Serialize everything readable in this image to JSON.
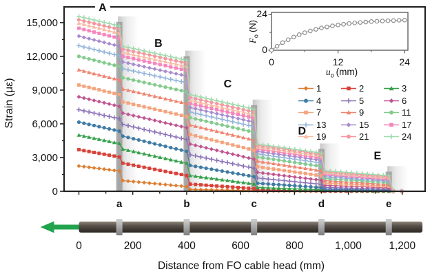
{
  "chart_data": [
    {
      "type": "line",
      "role": "main-strain-profile",
      "xlabel": "Distance from FO cable head (mm)",
      "ylabel": "Strain (με)",
      "xlim": [
        -55,
        1285
      ],
      "ylim": [
        0,
        16400
      ],
      "yticks": [
        0,
        3000,
        6000,
        9000,
        12000,
        15000
      ],
      "ytick_labels": [
        "0",
        "3,000",
        "6,000",
        "9,000",
        "12,000",
        "15,000"
      ],
      "ytick_minor_step": 1500,
      "xticks": [
        0,
        200,
        400,
        600,
        800,
        1000,
        1200
      ],
      "xtick_labels": [
        "0",
        "200",
        "400",
        "600",
        "800",
        "1,000",
        "1,200"
      ],
      "xtick_minor_step": 100,
      "grid": false,
      "region_bounds_mm": [
        [
          0,
          150
        ],
        [
          163,
          400
        ],
        [
          413,
          650
        ],
        [
          663,
          900
        ],
        [
          913,
          1150
        ]
      ],
      "regions": [
        {
          "label": "A",
          "x": 88,
          "y": 16350
        },
        {
          "label": "B",
          "x": 295,
          "y": 13150
        },
        {
          "label": "C",
          "x": 552,
          "y": 9550
        },
        {
          "label": "D",
          "x": 828,
          "y": 5350
        },
        {
          "label": "E",
          "x": 1108,
          "y": 3150
        }
      ],
      "anchors": [
        {
          "label": "a",
          "x": 150
        },
        {
          "label": "b",
          "x": 400
        },
        {
          "label": "c",
          "x": 650
        },
        {
          "label": "d",
          "x": 900
        },
        {
          "label": "e",
          "x": 1150
        }
      ],
      "anchor_band_color": "#9e9e9e",
      "series": [
        {
          "name": "1",
          "u_mm": 1,
          "color": "#DD7E30",
          "marker": "diamond",
          "values": [
            2250,
            1800,
            950,
            420,
            160,
            60,
            35,
            15,
            8,
            4
          ]
        },
        {
          "name": "2",
          "u_mm": 2,
          "color": "#D84038",
          "marker": "square",
          "values": [
            3700,
            3050,
            2500,
            1400,
            640,
            240,
            130,
            50,
            28,
            14
          ]
        },
        {
          "name": "3",
          "u_mm": 3,
          "color": "#33A048",
          "marker": "triangle",
          "values": [
            5000,
            4250,
            3750,
            2500,
            1400,
            650,
            340,
            140,
            80,
            40
          ]
        },
        {
          "name": "4",
          "u_mm": 4,
          "color": "#3F7BA5",
          "marker": "circle",
          "values": [
            6150,
            5350,
            4900,
            3550,
            2300,
            1300,
            720,
            330,
            180,
            95
          ]
        },
        {
          "name": "5",
          "u_mm": 5,
          "color": "#8A70B8",
          "marker": "plus",
          "values": [
            7250,
            6450,
            5950,
            4600,
            3250,
            2050,
            1180,
            620,
            340,
            190
          ]
        },
        {
          "name": "6",
          "u_mm": 6,
          "color": "#C05590",
          "marker": "diamond",
          "values": [
            8400,
            7550,
            6950,
            5650,
            4200,
            2850,
            1680,
            980,
            530,
            310
          ]
        },
        {
          "name": "7",
          "u_mm": 7,
          "color": "#F4A47E",
          "marker": "square",
          "values": [
            9450,
            8600,
            7950,
            6650,
            5050,
            3650,
            2180,
            1380,
            730,
            450
          ]
        },
        {
          "name": "9",
          "u_mm": 9,
          "color": "#EF8470",
          "marker": "triangle",
          "values": [
            10800,
            9900,
            9100,
            7800,
            5900,
            4550,
            2680,
            1820,
            950,
            610
          ]
        },
        {
          "name": "11",
          "u_mm": 11,
          "color": "#84CB8E",
          "marker": "circle",
          "values": [
            12000,
            11100,
            10100,
            8850,
            6550,
            5250,
            3050,
            2220,
            1140,
            770
          ]
        },
        {
          "name": "13",
          "u_mm": 13,
          "color": "#93B4DA",
          "marker": "plus",
          "values": [
            12950,
            12050,
            10900,
            9650,
            7050,
            5750,
            3320,
            2520,
            1290,
            890
          ]
        },
        {
          "name": "15",
          "u_mm": 15,
          "color": "#A78BCD",
          "marker": "diamond",
          "values": [
            13800,
            12900,
            11500,
            10250,
            7450,
            6150,
            3550,
            2750,
            1430,
            1010
          ]
        },
        {
          "name": "17",
          "u_mm": 17,
          "color": "#F585BC",
          "marker": "square",
          "values": [
            14500,
            13600,
            12000,
            10750,
            7800,
            6500,
            3760,
            2960,
            1550,
            1110
          ]
        },
        {
          "name": "19",
          "u_mm": 19,
          "color": "#F7BBA4",
          "marker": "triangle",
          "values": [
            14950,
            14050,
            12350,
            11100,
            8100,
            6800,
            3940,
            3140,
            1660,
            1210
          ]
        },
        {
          "name": "21",
          "u_mm": 21,
          "color": "#F9959D",
          "marker": "circle",
          "values": [
            15250,
            14400,
            12650,
            11400,
            8350,
            7050,
            4080,
            3280,
            1750,
            1300
          ]
        },
        {
          "name": "24",
          "u_mm": 24,
          "color": "#A0D9AD",
          "marker": "plus",
          "values": [
            15550,
            14700,
            12900,
            11650,
            8600,
            7300,
            4200,
            3400,
            1830,
            1380
          ]
        }
      ]
    },
    {
      "type": "line",
      "role": "inset-pullout-force",
      "xlabel": "u_o (mm)",
      "ylabel": "F_o (N)",
      "xlabel_parts": {
        "var": "u",
        "sub": "o",
        "unit": "(mm)"
      },
      "ylabel_parts": {
        "var": "F",
        "sub": "o",
        "unit": "(N)"
      },
      "xlim": [
        0,
        24.6
      ],
      "ylim": [
        0,
        25.5
      ],
      "xticks": [
        0,
        12,
        24
      ],
      "xtick_labels": [
        "0",
        "12",
        "24"
      ],
      "xticks_minor": [
        6,
        18
      ],
      "yticks": [
        0,
        24
      ],
      "ytick_labels": [
        "0",
        "24"
      ],
      "yticks_minor": [
        12
      ],
      "color": "#8f8f8f",
      "marker": "circle-open",
      "x": [
        0,
        1,
        2,
        3,
        4,
        5,
        6,
        7,
        8,
        9,
        10,
        11,
        12,
        13,
        14,
        15,
        16,
        17,
        18,
        19,
        20,
        21,
        22,
        23,
        24
      ],
      "y": [
        0,
        2.7,
        5.1,
        7.1,
        8.9,
        10.5,
        11.8,
        13.0,
        14.1,
        15.0,
        15.7,
        16.4,
        17.0,
        17.5,
        18.0,
        18.4,
        18.7,
        19.0,
        19.3,
        19.5,
        19.7,
        19.9,
        20.0,
        20.2,
        20.3
      ]
    }
  ],
  "legend": {
    "entries": [
      "1",
      "2",
      "3",
      "4",
      "5",
      "6",
      "7",
      "9",
      "11",
      "13",
      "15",
      "17",
      "19",
      "21",
      "24"
    ]
  },
  "cable": {
    "start_mm": 0,
    "end_mm": 1275,
    "clamps_mm": [
      150,
      400,
      650,
      900,
      1150
    ],
    "bar_color_top": "#8d847a",
    "bar_color_bottom": "#2c2621",
    "clamp_color": "#a5a5a5",
    "arrow_color": "#22A34D",
    "arrow_direction": "left"
  }
}
